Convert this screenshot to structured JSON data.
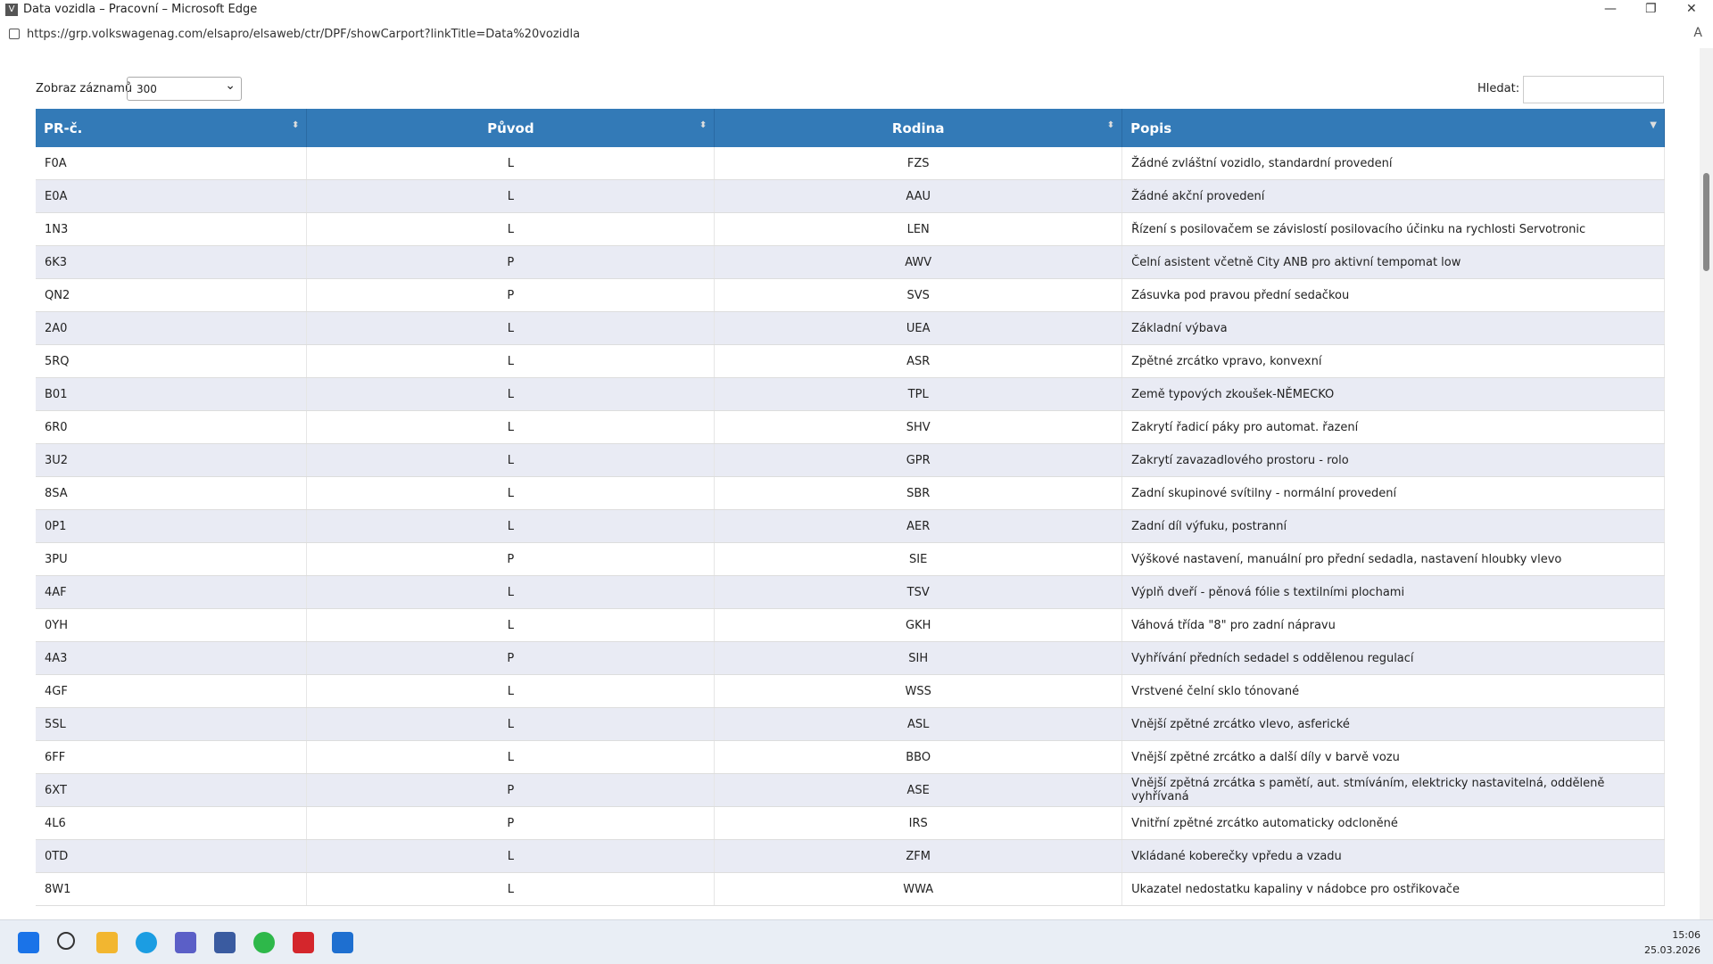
{
  "window": {
    "title": "Data vozidla – Pracovní – Microsoft Edge"
  },
  "address": {
    "url": "https://grp.volkswagenag.com/elsapro/elsaweb/ctr/DPF/showCarport?linkTitle=Data%20vozidla"
  },
  "controls": {
    "show_label": "Zobraz záznamů",
    "show_value": "300",
    "search_label": "Hledat:"
  },
  "table": {
    "headers": [
      "PR-č.",
      "Původ",
      "Rodina",
      "Popis"
    ],
    "rows": [
      [
        "F0A",
        "L",
        "FZS",
        "Žádné zvláštní vozidlo, standardní provedení"
      ],
      [
        "E0A",
        "L",
        "AAU",
        "Žádné akční provedení"
      ],
      [
        "1N3",
        "L",
        "LEN",
        "Řízení s posilovačem se závislostí posilovacího účinku na rychlosti Servotronic"
      ],
      [
        "6K3",
        "P",
        "AWV",
        "Čelní asistent včetně City ANB pro aktivní tempomat low"
      ],
      [
        "QN2",
        "P",
        "SVS",
        "Zásuvka pod pravou přední sedačkou"
      ],
      [
        "2A0",
        "L",
        "UEA",
        "Základní výbava"
      ],
      [
        "5RQ",
        "L",
        "ASR",
        "Zpětné zrcátko vpravo, konvexní"
      ],
      [
        "B01",
        "L",
        "TPL",
        "Země typových zkoušek-NĚMECKO"
      ],
      [
        "6R0",
        "L",
        "SHV",
        "Zakrytí řadicí páky pro automat. řazení"
      ],
      [
        "3U2",
        "L",
        "GPR",
        "Zakrytí zavazadlového prostoru - rolo"
      ],
      [
        "8SA",
        "L",
        "SBR",
        "Zadní skupinové svítilny - normální provedení"
      ],
      [
        "0P1",
        "L",
        "AER",
        "Zadní díl výfuku, postranní"
      ],
      [
        "3PU",
        "P",
        "SIE",
        "Výškové nastavení, manuální pro přední sedadla, nastavení hloubky vlevo"
      ],
      [
        "4AF",
        "L",
        "TSV",
        "Výplň dveří - pěnová fólie s textilními plochami"
      ],
      [
        "0YH",
        "L",
        "GKH",
        "Váhová třída \"8\" pro zadní nápravu"
      ],
      [
        "4A3",
        "P",
        "SIH",
        "Vyhřívání předních sedadel s oddělenou regulací"
      ],
      [
        "4GF",
        "L",
        "WSS",
        "Vrstvené čelní sklo tónované"
      ],
      [
        "5SL",
        "L",
        "ASL",
        "Vnější zpětné zrcátko vlevo, asferické"
      ],
      [
        "6FF",
        "L",
        "BBO",
        "Vnější zpětné zrcátko a další díly v barvě vozu"
      ],
      [
        "6XT",
        "P",
        "ASE",
        "Vnější zpětná zrcátka s pamětí, aut. stmíváním, elektricky nastavitelná, odděleně vyhřívaná"
      ],
      [
        "4L6",
        "P",
        "IRS",
        "Vnitřní zpětné zrcátko automaticky odcloněné"
      ],
      [
        "0TD",
        "L",
        "ZFM",
        "Vkládané koberečky vpředu a vzadu"
      ],
      [
        "8W1",
        "L",
        "WWA",
        "Ukazatel nedostatku kapaliny v nádobce pro ostřikovače"
      ]
    ]
  },
  "taskbar": {
    "time": "15:06",
    "date": "25.03.2026"
  }
}
